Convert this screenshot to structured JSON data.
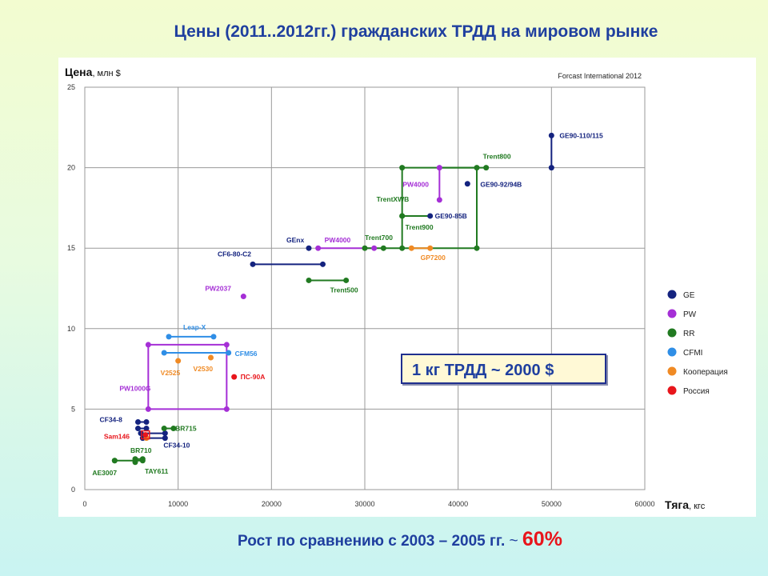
{
  "slide": {
    "title": "Цены (2011..2012гг.) гражданских ТРДД на мировом рынке",
    "rate_box": "1 кг ТРДД ~ 2000 $",
    "footer_text": "Рост по сравнению с 2003 – 2005 гг.",
    "footer_tilde": "~",
    "footer_value": "60%"
  },
  "chart_data": {
    "type": "scatter",
    "source": "Forcast International 2012",
    "ylabel_main": "Цена",
    "ylabel_unit": ", млн $",
    "xlabel_main": "Тяга",
    "xlabel_unit": ", кгс",
    "xlim": [
      0,
      60000
    ],
    "ylim": [
      0,
      25
    ],
    "xticks": [
      0,
      10000,
      20000,
      30000,
      40000,
      50000,
      60000
    ],
    "yticks": [
      0,
      5,
      10,
      15,
      20,
      25
    ],
    "grid": true,
    "legend_position": "right",
    "series": [
      {
        "name": "GE",
        "color": "#14237f"
      },
      {
        "name": "PW",
        "color": "#a52fd6"
      },
      {
        "name": "RR",
        "color": "#217a21"
      },
      {
        "name": "CFMI",
        "color": "#2f8ee6"
      },
      {
        "name": "Кооперация",
        "color": "#f08a24"
      },
      {
        "name": "Россия",
        "color": "#e8151b"
      }
    ],
    "segments": [
      {
        "series": "GE",
        "points": [
          [
            50000,
            20
          ],
          [
            50000,
            22
          ]
        ]
      },
      {
        "series": "GE",
        "points": [
          [
            18000,
            14
          ],
          [
            25500,
            14
          ]
        ]
      },
      {
        "series": "PW",
        "points": [
          [
            25000,
            15
          ],
          [
            31000,
            15
          ]
        ]
      },
      {
        "series": "PW",
        "points": [
          [
            38000,
            20
          ],
          [
            38000,
            18
          ]
        ]
      },
      {
        "series": "RR",
        "points": [
          [
            34000,
            20
          ],
          [
            42000,
            20
          ]
        ]
      },
      {
        "series": "RR",
        "points": [
          [
            38000,
            20
          ],
          [
            43000,
            20
          ]
        ]
      },
      {
        "series": "RR",
        "points": [
          [
            42000,
            20
          ],
          [
            42000,
            15
          ]
        ]
      },
      {
        "series": "RR",
        "points": [
          [
            34000,
            15
          ],
          [
            42000,
            15
          ]
        ]
      },
      {
        "series": "RR",
        "points": [
          [
            34000,
            20
          ],
          [
            34000,
            15
          ]
        ]
      },
      {
        "series": "RR",
        "points": [
          [
            34000,
            17
          ],
          [
            37000,
            17
          ]
        ]
      },
      {
        "series": "RR",
        "points": [
          [
            30000,
            15
          ],
          [
            34000,
            15
          ]
        ]
      },
      {
        "series": "RR",
        "points": [
          [
            24000,
            13
          ],
          [
            28000,
            13
          ]
        ]
      },
      {
        "series": "Кооперация",
        "points": [
          [
            35000,
            15
          ],
          [
            37000,
            15
          ]
        ]
      },
      {
        "series": "PW",
        "points": [
          [
            6800,
            9
          ],
          [
            15200,
            9
          ]
        ]
      },
      {
        "series": "PW",
        "points": [
          [
            6800,
            9
          ],
          [
            6800,
            5
          ]
        ]
      },
      {
        "series": "PW",
        "points": [
          [
            6800,
            5
          ],
          [
            15200,
            5
          ]
        ]
      },
      {
        "series": "PW",
        "points": [
          [
            15200,
            9
          ],
          [
            15200,
            5
          ]
        ]
      },
      {
        "series": "CFMI",
        "points": [
          [
            9000,
            9.5
          ],
          [
            13800,
            9.5
          ]
        ]
      },
      {
        "series": "CFMI",
        "points": [
          [
            8500,
            8.5
          ],
          [
            15400,
            8.5
          ]
        ]
      },
      {
        "series": "RR",
        "points": [
          [
            8500,
            3.8
          ],
          [
            9500,
            3.8
          ]
        ]
      },
      {
        "series": "RR",
        "points": [
          [
            3200,
            1.8
          ],
          [
            6200,
            1.8
          ]
        ]
      },
      {
        "series": "RR",
        "points": [
          [
            5400,
            1.9
          ],
          [
            6200,
            1.9
          ]
        ]
      },
      {
        "series": "GE",
        "points": [
          [
            5700,
            4.2
          ],
          [
            6600,
            4.2
          ]
        ]
      },
      {
        "series": "GE",
        "points": [
          [
            5700,
            3.8
          ],
          [
            6600,
            3.8
          ]
        ]
      },
      {
        "series": "GE",
        "points": [
          [
            6000,
            3.5
          ],
          [
            8600,
            3.5
          ]
        ]
      },
      {
        "series": "GE",
        "points": [
          [
            6200,
            3.2
          ],
          [
            8600,
            3.2
          ]
        ]
      }
    ],
    "points": [
      {
        "series": "GE",
        "x": 50000,
        "y": 22,
        "label": "GE90-110/115",
        "ldx": 10,
        "ldy": 3
      },
      {
        "series": "GE",
        "x": 50000,
        "y": 20
      },
      {
        "series": "GE",
        "x": 41000,
        "y": 19,
        "label": "GE90-92/94B",
        "ldx": 16,
        "ldy": 4
      },
      {
        "series": "GE",
        "x": 37000,
        "y": 17,
        "label": "GE90-85B",
        "ldx": 6,
        "ldy": 3
      },
      {
        "series": "GE",
        "x": 24000,
        "y": 15,
        "label": "GEnx",
        "ldx": -28,
        "ldy": -7
      },
      {
        "series": "GE",
        "x": 18000,
        "y": 14,
        "label": "CF6-80-C2",
        "ldx": -44,
        "ldy": -10
      },
      {
        "series": "GE",
        "x": 25500,
        "y": 14
      },
      {
        "series": "PW",
        "x": 38000,
        "y": 20,
        "label": "PW4000",
        "ldx": -46,
        "ldy": 24
      },
      {
        "series": "PW",
        "x": 38000,
        "y": 18
      },
      {
        "series": "PW",
        "x": 25000,
        "y": 15,
        "label": "PW4000",
        "ldx": 8,
        "ldy": -7
      },
      {
        "series": "PW",
        "x": 31000,
        "y": 15
      },
      {
        "series": "PW",
        "x": 17000,
        "y": 12,
        "label": "PW2037",
        "ldx": -48,
        "ldy": -7
      },
      {
        "series": "RR",
        "x": 34000,
        "y": 20
      },
      {
        "series": "RR",
        "x": 42000,
        "y": 20
      },
      {
        "series": "RR",
        "x": 43000,
        "y": 20,
        "label": "Trent800",
        "ldx": -4,
        "ldy": -11
      },
      {
        "series": "RR",
        "x": 42000,
        "y": 15
      },
      {
        "series": "RR",
        "x": 34000,
        "y": 15
      },
      {
        "series": "RR",
        "x": 34000,
        "y": 17,
        "label": "TrentXWB",
        "ldx": -32,
        "ldy": -18
      },
      {
        "series": "RR",
        "x": 34000,
        "y": 17,
        "label": "Trent900",
        "ldx": 4,
        "ldy": 17
      },
      {
        "series": "RR",
        "x": 30000,
        "y": 15,
        "label": "Trent700",
        "ldx": 0,
        "ldy": -10
      },
      {
        "series": "RR",
        "x": 32000,
        "y": 15
      },
      {
        "series": "RR",
        "x": 24000,
        "y": 13
      },
      {
        "series": "RR",
        "x": 28000,
        "y": 13,
        "label": "Trent500",
        "ldx": -20,
        "ldy": 15
      },
      {
        "series": "Кооперация",
        "x": 35000,
        "y": 15
      },
      {
        "series": "Кооперация",
        "x": 37000,
        "y": 15,
        "label": "GP7200",
        "ldx": -12,
        "ldy": 15
      },
      {
        "series": "CFMI",
        "x": 9000,
        "y": 9.5
      },
      {
        "series": "CFMI",
        "x": 13800,
        "y": 9.5,
        "label": "Leap-X",
        "ldx": -38,
        "ldy": -9
      },
      {
        "series": "CFMI",
        "x": 8500,
        "y": 8.5
      },
      {
        "series": "CFMI",
        "x": 15400,
        "y": 8.5,
        "label": "CFM56",
        "ldx": 8,
        "ldy": 4
      },
      {
        "series": "PW",
        "x": 6800,
        "y": 9
      },
      {
        "series": "PW",
        "x": 15200,
        "y": 9
      },
      {
        "series": "PW",
        "x": 6800,
        "y": 5,
        "label": "PW1000G",
        "ldx": -36,
        "ldy": -23
      },
      {
        "series": "PW",
        "x": 15200,
        "y": 5
      },
      {
        "series": "Кооперация",
        "x": 10000,
        "y": 8,
        "label": "V2525",
        "ldx": -22,
        "ldy": 18
      },
      {
        "series": "Кооперация",
        "x": 13500,
        "y": 8.2,
        "label": "V2530",
        "ldx": -22,
        "ldy": 17
      },
      {
        "series": "Россия",
        "x": 16000,
        "y": 7,
        "label": "ПС-90А",
        "ldx": 8,
        "ldy": 3
      },
      {
        "series": "GE",
        "x": 5700,
        "y": 4.2,
        "label": "CF34-8",
        "ldx": -48,
        "ldy": 0
      },
      {
        "series": "GE",
        "x": 6600,
        "y": 4.2
      },
      {
        "series": "GE",
        "x": 5700,
        "y": 3.8
      },
      {
        "series": "GE",
        "x": 6600,
        "y": 3.8
      },
      {
        "series": "GE",
        "x": 6000,
        "y": 3.5
      },
      {
        "series": "GE",
        "x": 8600,
        "y": 3.5
      },
      {
        "series": "GE",
        "x": 6200,
        "y": 3.2
      },
      {
        "series": "GE",
        "x": 8600,
        "y": 3.2,
        "label": "CF34-10",
        "ldx": -2,
        "ldy": 12
      },
      {
        "series": "Кооперация",
        "x": 6600,
        "y": 3.2
      },
      {
        "series": "Россия",
        "x": 6500,
        "y": 3.4,
        "label": "Sam146",
        "ldx": -52,
        "ldy": 5,
        "box": true
      },
      {
        "series": "RR",
        "x": 8500,
        "y": 3.8,
        "label": "BR715",
        "ldx": 14,
        "ldy": 3
      },
      {
        "series": "RR",
        "x": 9500,
        "y": 3.8
      },
      {
        "series": "RR",
        "x": 6200,
        "y": 1.9
      },
      {
        "series": "RR",
        "x": 5400,
        "y": 1.9,
        "label": "BR710",
        "ldx": -6,
        "ldy": -8
      },
      {
        "series": "RR",
        "x": 3200,
        "y": 1.8
      },
      {
        "series": "RR",
        "x": 6200,
        "y": 1.8
      },
      {
        "series": "RR",
        "x": 5400,
        "y": 1.7,
        "label": "TAY611",
        "ldx": 12,
        "ldy": 14
      },
      {
        "series": "RR",
        "x": 3200,
        "y": 1.8,
        "label": "AE3007",
        "ldx": -28,
        "ldy": 18
      }
    ]
  }
}
